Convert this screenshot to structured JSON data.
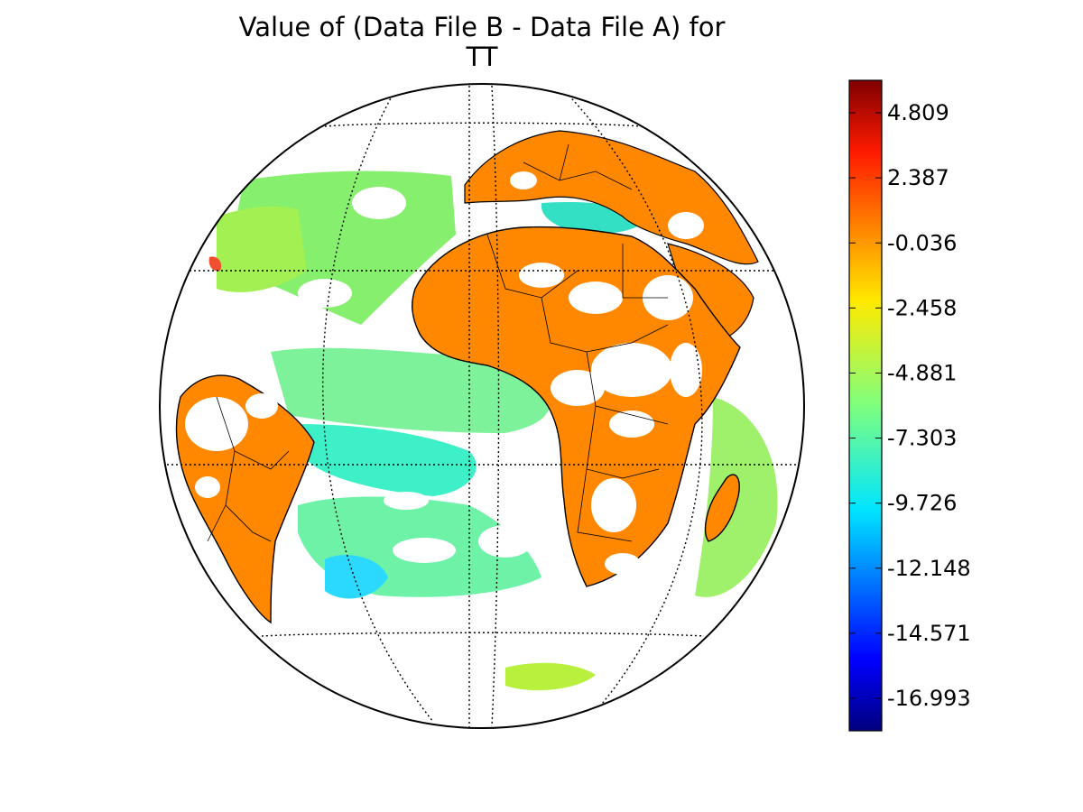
{
  "figure": {
    "title_line1": "Value of (Data File B - Data File A) for",
    "title_line2": "TT"
  },
  "map": {
    "projection": "orthographic",
    "center": "Atlantic / Africa",
    "graticule": "dotted",
    "coastlines": true,
    "country_borders": true,
    "colors": {
      "land_diff": "#ff8800",
      "ocean_diff_main": "#7cf07c",
      "ocean_diff_cool": "#33eebb",
      "ocean_diff_cold": "#22ccff",
      "no_data": "#ffffff"
    }
  },
  "colorbar": {
    "colormap": "jet",
    "min": -18.204,
    "max": 6.02,
    "tick_labels": [
      "4.809",
      "2.387",
      "-0.036",
      "-2.458",
      "-4.881",
      "-7.303",
      "-9.726",
      "-12.148",
      "-14.571",
      "-16.993"
    ],
    "tick_values": [
      4.809,
      2.387,
      -0.036,
      -2.458,
      -4.881,
      -7.303,
      -9.726,
      -12.148,
      -14.571,
      -16.993
    ]
  }
}
